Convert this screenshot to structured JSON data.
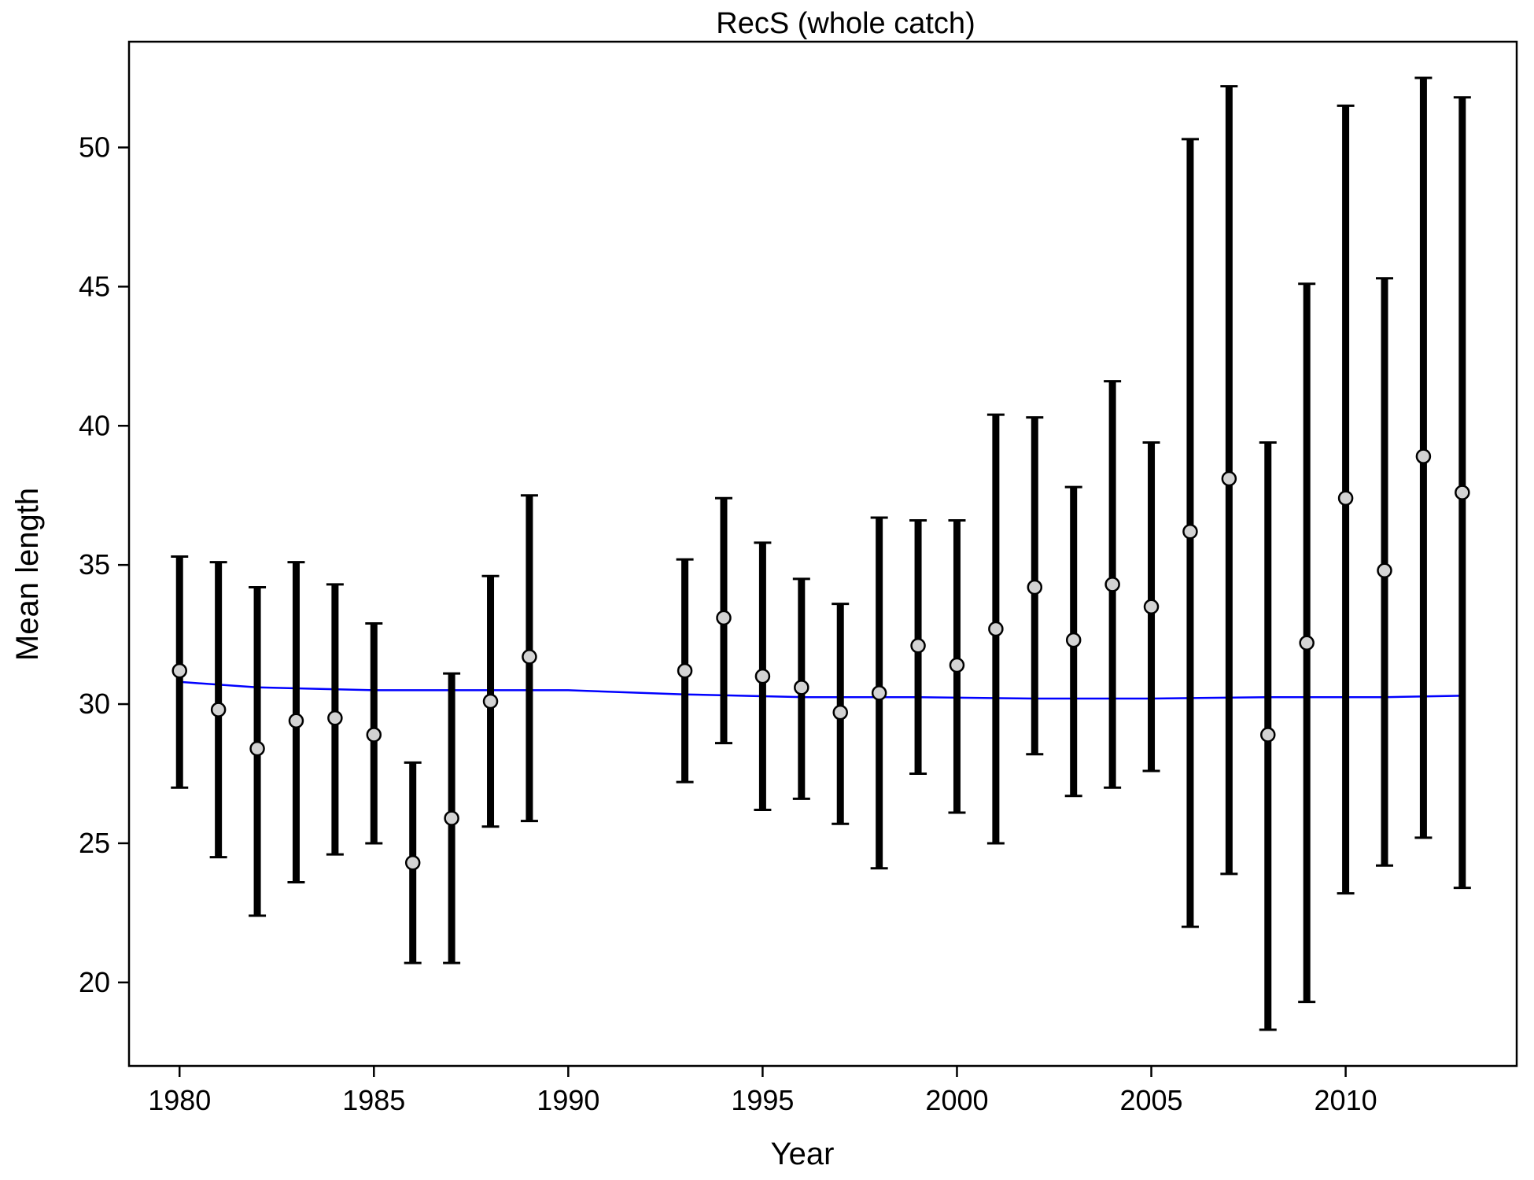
{
  "chart_data": {
    "type": "scatter",
    "title": "RecS (whole catch)",
    "xlabel": "Year",
    "ylabel": "Mean length",
    "xlim": [
      1978.7,
      2014.4
    ],
    "ylim": [
      17.0,
      53.8
    ],
    "xticks": [
      1980,
      1985,
      1990,
      1995,
      2000,
      2005,
      2010
    ],
    "yticks": [
      20,
      25,
      30,
      35,
      40,
      45,
      50
    ],
    "grid": false,
    "legend": "none",
    "colors": {
      "points_fill": "#d3d3d3",
      "points_stroke": "#000000",
      "error_bars": "#000000",
      "smoother": "#0000ff"
    },
    "series": [
      {
        "x": [
          1980,
          1981,
          1982,
          1983,
          1984,
          1985,
          1986,
          1987,
          1988,
          1989,
          1993,
          1994,
          1995,
          1996,
          1997,
          1998,
          1999,
          2000,
          2001,
          2002,
          2003,
          2004,
          2005,
          2006,
          2007,
          2008,
          2009,
          2010,
          2011,
          2012,
          2013
        ],
        "y": [
          31.2,
          29.8,
          28.4,
          29.4,
          29.5,
          28.9,
          24.3,
          25.9,
          30.1,
          31.7,
          31.2,
          33.1,
          31.0,
          30.6,
          29.7,
          30.4,
          32.1,
          31.4,
          32.7,
          34.2,
          32.3,
          34.3,
          33.5,
          36.2,
          38.1,
          28.9,
          32.2,
          37.4,
          34.8,
          38.9,
          37.6
        ],
        "lower": [
          27.0,
          24.5,
          22.4,
          23.6,
          24.6,
          25.0,
          20.7,
          20.7,
          25.6,
          25.8,
          27.2,
          28.6,
          26.2,
          26.6,
          25.7,
          24.1,
          27.5,
          26.1,
          25.0,
          28.2,
          26.7,
          27.0,
          27.6,
          22.0,
          23.9,
          18.3,
          19.3,
          23.2,
          24.2,
          25.2,
          23.4
        ],
        "upper": [
          35.3,
          35.1,
          34.2,
          35.1,
          34.3,
          32.9,
          27.9,
          31.1,
          34.6,
          37.5,
          35.2,
          37.4,
          35.8,
          34.5,
          33.6,
          36.7,
          36.6,
          36.6,
          40.4,
          40.3,
          37.8,
          41.6,
          39.4,
          50.3,
          52.2,
          39.4,
          45.1,
          51.5,
          45.3,
          52.5,
          51.8
        ]
      },
      {
        "style": "line",
        "x": [
          1980,
          1982,
          1985,
          1988,
          1990,
          1993,
          1996,
          1999,
          2002,
          2005,
          2008,
          2011,
          2013
        ],
        "y": [
          30.8,
          30.6,
          30.5,
          30.5,
          30.5,
          30.35,
          30.25,
          30.25,
          30.2,
          30.2,
          30.25,
          30.25,
          30.3
        ]
      }
    ]
  }
}
